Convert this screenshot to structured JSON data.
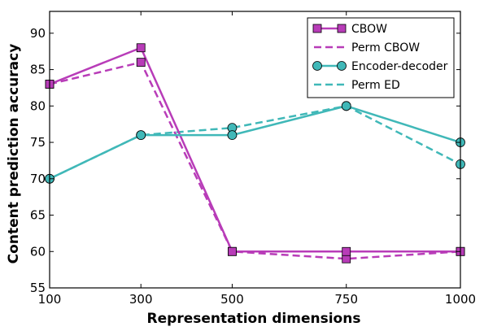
{
  "chart_data": {
    "type": "line",
    "title": "",
    "xlabel": "Representation dimensions",
    "ylabel": "Content prediction accuracy",
    "x": [
      100,
      300,
      500,
      750,
      1000
    ],
    "x_tick_labels": [
      "100",
      "300",
      "500",
      "750",
      "1000"
    ],
    "y_ticks": [
      55,
      60,
      65,
      70,
      75,
      80,
      85,
      90
    ],
    "y_tick_labels": [
      "55",
      "60",
      "65",
      "70",
      "75",
      "80",
      "85",
      "90"
    ],
    "xlim": [
      100,
      1000
    ],
    "ylim": [
      55,
      93
    ],
    "grid": false,
    "legend_position": "top-right",
    "series": [
      {
        "name": "CBOW",
        "values": [
          83,
          88,
          60,
          60,
          60
        ],
        "color": "#b83cb8",
        "style": "solid",
        "marker": "square"
      },
      {
        "name": "Perm CBOW",
        "values": [
          83,
          86,
          60,
          59,
          60
        ],
        "color": "#b83cb8",
        "style": "dashed",
        "marker": "square"
      },
      {
        "name": "Encoder-decoder",
        "values": [
          70,
          76,
          76,
          80,
          75
        ],
        "color": "#40b8b8",
        "style": "solid",
        "marker": "circle"
      },
      {
        "name": "Perm ED",
        "values": [
          70,
          76,
          77,
          80,
          72
        ],
        "color": "#40b8b8",
        "style": "dashed",
        "marker": "circle"
      }
    ]
  }
}
